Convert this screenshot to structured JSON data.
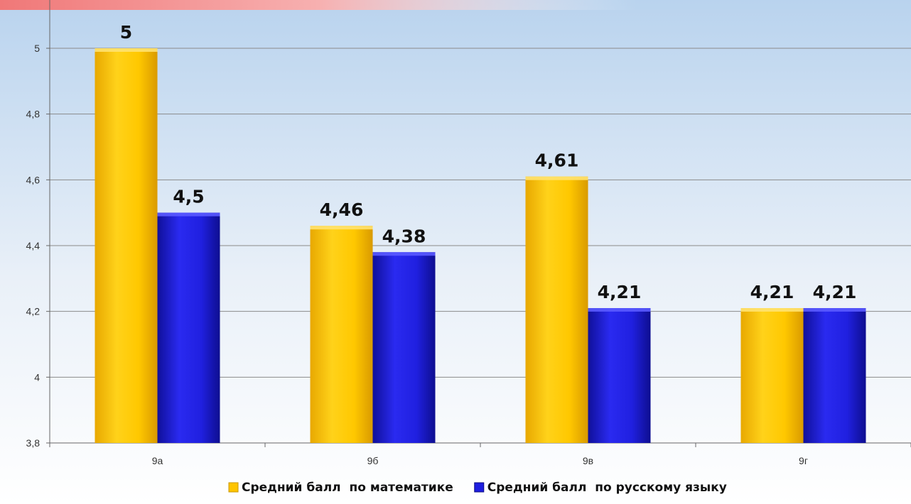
{
  "chart_data": {
    "type": "bar",
    "categories": [
      "9а",
      "9б",
      "9в",
      "9г"
    ],
    "series": [
      {
        "name": "Средний балл  по математике",
        "values": [
          5,
          4.46,
          4.61,
          4.21
        ],
        "value_labels": [
          "5",
          "4,46",
          "4,61",
          "4,21"
        ],
        "color": "#ffc400"
      },
      {
        "name": "Средний балл  по русскому языку",
        "values": [
          4.5,
          4.38,
          4.21,
          4.21
        ],
        "value_labels": [
          "4,5",
          "4,38",
          "4,21",
          "4,21"
        ],
        "color": "#1e1ee0"
      }
    ],
    "ylim": [
      3.8,
      5.2
    ],
    "y_ticks": [
      3.8,
      4,
      4.2,
      4.4,
      4.6,
      4.8,
      5
    ],
    "y_tick_labels": [
      "3,8",
      "4",
      "4,2",
      "4,4",
      "4,6",
      "4,8",
      "5"
    ],
    "grid": true,
    "legend_position": "bottom",
    "background": "gradient-blue-to-white"
  }
}
